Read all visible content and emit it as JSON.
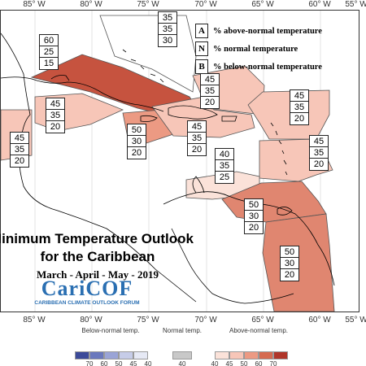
{
  "longitude_labels": [
    "85° W",
    "80° W",
    "75° W",
    "70° W",
    "65° W",
    "60° W",
    "55° W"
  ],
  "legend_key": [
    {
      "letter": "A",
      "text": "% above-normal temperature"
    },
    {
      "letter": "N",
      "text": "% normal temperature"
    },
    {
      "letter": "B",
      "text": "% below-normal temperature"
    }
  ],
  "title": {
    "line1": "Minimum Temperature Outlook",
    "line2": "for the Caribbean",
    "period": "March - April - May - 2019"
  },
  "logo": {
    "name": "CariCOF",
    "subtitle": "CARIBBEAN CLIMATE OUTLOOK FORUM"
  },
  "regions": [
    {
      "id": "cuba",
      "values": [
        "60",
        "25",
        "15"
      ],
      "fill": "#c6533f"
    },
    {
      "id": "bahamas",
      "values": [
        "35",
        "35",
        "30"
      ],
      "fill": "#ffffff"
    },
    {
      "id": "cayman-jamaica",
      "values": [
        "45",
        "35",
        "20"
      ],
      "fill": "#f7c6b8"
    },
    {
      "id": "belize",
      "values": [
        "45",
        "35",
        "20"
      ],
      "fill": "#f7c6b8"
    },
    {
      "id": "jamaica-south",
      "values": [
        "50",
        "30",
        "20"
      ],
      "fill": "#ec9a83"
    },
    {
      "id": "hispaniola",
      "values": [
        "45",
        "35",
        "20"
      ],
      "fill": "#f7c6b8"
    },
    {
      "id": "turks-caicos",
      "values": [
        "45",
        "35",
        "20"
      ],
      "fill": "#f7c6b8"
    },
    {
      "id": "leeward",
      "values": [
        "45",
        "35",
        "20"
      ],
      "fill": "#f7c6b8"
    },
    {
      "id": "windward",
      "values": [
        "45",
        "35",
        "20"
      ],
      "fill": "#f7c6b8"
    },
    {
      "id": "abc-islands",
      "values": [
        "40",
        "35",
        "25"
      ],
      "fill": "#fbe2d9"
    },
    {
      "id": "trinidad",
      "values": [
        "50",
        "30",
        "20"
      ],
      "fill": "#e08670"
    },
    {
      "id": "guianas",
      "values": [
        "50",
        "30",
        "20"
      ],
      "fill": "#e08670"
    }
  ],
  "colorbar": {
    "below": {
      "label": "Below-normal temp.",
      "ticks": [
        "70",
        "60",
        "50",
        "45",
        "40"
      ],
      "colors": [
        "#3c4a99",
        "#6a78bd",
        "#9aa4d6",
        "#c6cce8",
        "#e6e9f5"
      ]
    },
    "normal": {
      "label": "Normal temp.",
      "ticks": [
        "40"
      ],
      "colors": [
        "#c8c8c8"
      ]
    },
    "above": {
      "label": "Above-normal temp.",
      "ticks": [
        "40",
        "45",
        "50",
        "60",
        "70"
      ],
      "colors": [
        "#fbe2d9",
        "#f7c6b8",
        "#ec9a83",
        "#d56a50",
        "#b0362a"
      ]
    }
  }
}
